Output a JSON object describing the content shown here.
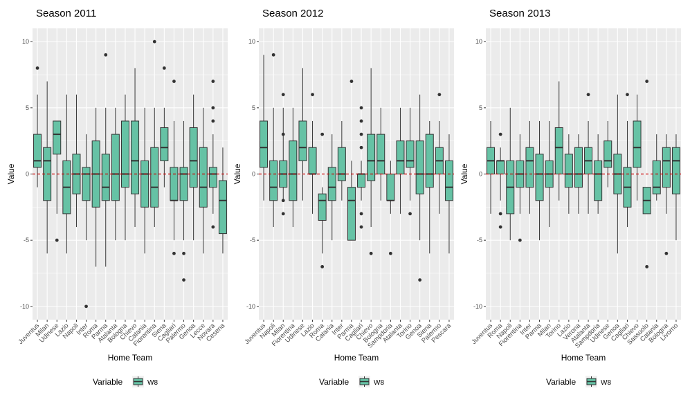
{
  "colors": {
    "box_fill": "#66c2a5",
    "reference_line": "#cc0000"
  },
  "chart_data": [
    {
      "type": "box",
      "title": "Season 2011",
      "xlabel": "Home Team",
      "ylabel": "Value",
      "ylim": [
        -11,
        11
      ],
      "yticks": [
        -10,
        -5,
        0,
        5,
        10
      ],
      "reference_line": 0,
      "legend": {
        "title": "Variable",
        "entries": [
          "W8"
        ],
        "position": "bottom"
      },
      "categories": [
        "Juventus",
        "Milan",
        "Udinese",
        "Lazio",
        "Napoli",
        "Inter",
        "Roma",
        "Parma",
        "Atalanta",
        "Bologna",
        "Chievo",
        "Catania",
        "Fiorentina",
        "Siena",
        "Cagliari",
        "Palermo",
        "Genoa",
        "Lecce",
        "Novara",
        "Cesena"
      ],
      "boxes": [
        {
          "low": -1,
          "q1": 0.5,
          "median": 1,
          "q3": 3,
          "high": 6,
          "outliers": [
            8
          ]
        },
        {
          "low": -6,
          "q1": -2,
          "median": 1,
          "q3": 2,
          "high": 7,
          "outliers": []
        },
        {
          "low": -3,
          "q1": 1.5,
          "median": 3,
          "q3": 4,
          "high": 4,
          "outliers": [
            -5
          ]
        },
        {
          "low": -6,
          "q1": -3,
          "median": -1,
          "q3": 1,
          "high": 6,
          "outliers": []
        },
        {
          "low": -4,
          "q1": -1.5,
          "median": 0,
          "q3": 1.5,
          "high": 6,
          "outliers": []
        },
        {
          "low": -5,
          "q1": -2,
          "median": 0,
          "q3": 0.5,
          "high": 3,
          "outliers": [
            -10
          ]
        },
        {
          "low": -7,
          "q1": -2.5,
          "median": 0,
          "q3": 2.5,
          "high": 5,
          "outliers": []
        },
        {
          "low": -7,
          "q1": -2,
          "median": -1,
          "q3": 1.5,
          "high": 5,
          "outliers": [
            9
          ]
        },
        {
          "low": -5,
          "q1": -2,
          "median": 0,
          "q3": 3,
          "high": 5,
          "outliers": []
        },
        {
          "low": -5,
          "q1": -1,
          "median": 0,
          "q3": 4,
          "high": 6,
          "outliers": []
        },
        {
          "low": -4,
          "q1": -1.5,
          "median": 1,
          "q3": 4,
          "high": 8,
          "outliers": []
        },
        {
          "low": -6,
          "q1": -2.5,
          "median": 0,
          "q3": 1,
          "high": 5,
          "outliers": []
        },
        {
          "low": -4,
          "q1": -2.5,
          "median": -1,
          "q3": 2,
          "high": 5,
          "outliers": [
            10
          ]
        },
        {
          "low": -1,
          "q1": 1,
          "median": 2,
          "q3": 3.5,
          "high": 5,
          "outliers": [
            8
          ]
        },
        {
          "low": -5,
          "q1": -2,
          "median": -2,
          "q3": 0.5,
          "high": 4,
          "outliers": [
            7,
            -6
          ]
        },
        {
          "low": -5,
          "q1": -2,
          "median": 0,
          "q3": 0.5,
          "high": 4,
          "outliers": [
            -6,
            -8
          ]
        },
        {
          "low": -5,
          "q1": -1,
          "median": 1,
          "q3": 3.5,
          "high": 6,
          "outliers": []
        },
        {
          "low": -6,
          "q1": -2.5,
          "median": -1,
          "q3": 2,
          "high": 5,
          "outliers": []
        },
        {
          "low": -3,
          "q1": -1,
          "median": 0,
          "q3": 0.5,
          "high": 3,
          "outliers": [
            7,
            5,
            4,
            -4
          ]
        },
        {
          "low": -6,
          "q1": -4.5,
          "median": -2,
          "q3": -0.5,
          "high": 2,
          "outliers": []
        }
      ]
    },
    {
      "type": "box",
      "title": "Season 2012",
      "xlabel": "Home Team",
      "ylabel": "Value",
      "ylim": [
        -11,
        11
      ],
      "yticks": [
        -10,
        -5,
        0,
        5,
        10
      ],
      "reference_line": 0,
      "legend": {
        "title": "Variable",
        "entries": [
          "W8"
        ],
        "position": "bottom"
      },
      "categories": [
        "Juventus",
        "Napoli",
        "Milan",
        "Fiorentina",
        "Udinese",
        "Lazio",
        "Roma",
        "Catania",
        "Inter",
        "Parma",
        "Cagliari",
        "Chievo",
        "Bologna",
        "Sampdoria",
        "Atalanta",
        "Torino",
        "Genoa",
        "Siena",
        "Palermo",
        "Pescara"
      ],
      "boxes": [
        {
          "low": -2,
          "q1": 0.5,
          "median": 2,
          "q3": 4,
          "high": 9,
          "outliers": []
        },
        {
          "low": -4,
          "q1": -2,
          "median": -1,
          "q3": 1,
          "high": 5,
          "outliers": [
            9
          ]
        },
        {
          "low": -2,
          "q1": -1,
          "median": 0,
          "q3": 1,
          "high": 5,
          "outliers": [
            6,
            3,
            -2,
            -3
          ]
        },
        {
          "low": -4,
          "q1": -2,
          "median": 0,
          "q3": 2.5,
          "high": 5,
          "outliers": []
        },
        {
          "low": -2,
          "q1": 1,
          "median": 2,
          "q3": 4,
          "high": 8,
          "outliers": []
        },
        {
          "low": -3,
          "q1": 0,
          "median": 0,
          "q3": 2,
          "high": 4,
          "outliers": [
            6
          ]
        },
        {
          "low": -6,
          "q1": -3.5,
          "median": -2,
          "q3": -1.5,
          "high": -1,
          "outliers": [
            3,
            -7
          ]
        },
        {
          "low": -5,
          "q1": -2,
          "median": -1,
          "q3": 0.5,
          "high": 3,
          "outliers": []
        },
        {
          "low": -2,
          "q1": -0.5,
          "median": 0,
          "q3": 2,
          "high": 4,
          "outliers": []
        },
        {
          "low": -5,
          "q1": -5,
          "median": -2,
          "q3": -1,
          "high": 1,
          "outliers": [
            7
          ]
        },
        {
          "low": -2,
          "q1": -1,
          "median": 0,
          "q3": 0,
          "high": 1,
          "outliers": [
            5,
            4,
            3,
            2,
            -3,
            -4
          ]
        },
        {
          "low": -4,
          "q1": -0.5,
          "median": 1,
          "q3": 3,
          "high": 8,
          "outliers": [
            -6
          ]
        },
        {
          "low": -2,
          "q1": 0,
          "median": 1,
          "q3": 3,
          "high": 5,
          "outliers": []
        },
        {
          "low": -3,
          "q1": -2,
          "median": -2,
          "q3": 0,
          "high": 1,
          "outliers": [
            -6
          ]
        },
        {
          "low": -3,
          "q1": 0,
          "median": 1,
          "q3": 2.5,
          "high": 5,
          "outliers": []
        },
        {
          "low": -2,
          "q1": 0.5,
          "median": 1,
          "q3": 2.5,
          "high": 5,
          "outliers": [
            -3
          ]
        },
        {
          "low": -5,
          "q1": -1.5,
          "median": 0,
          "q3": 2.5,
          "high": 6,
          "outliers": [
            -8
          ]
        },
        {
          "low": -6,
          "q1": -1,
          "median": 0,
          "q3": 3,
          "high": 4,
          "outliers": []
        },
        {
          "low": -3,
          "q1": 0,
          "median": 1,
          "q3": 2,
          "high": 4,
          "outliers": [
            6
          ]
        },
        {
          "low": -6,
          "q1": -2,
          "median": -1,
          "q3": 1,
          "high": 3,
          "outliers": []
        }
      ]
    },
    {
      "type": "box",
      "title": "Season 2013",
      "xlabel": "Home Team",
      "ylabel": "Value",
      "ylim": [
        -11,
        11
      ],
      "yticks": [
        -10,
        -5,
        0,
        5,
        10
      ],
      "reference_line": 0,
      "legend": {
        "title": "Variable",
        "entries": [
          "W8"
        ],
        "position": "bottom"
      },
      "categories": [
        "Juventus",
        "Roma",
        "Napoli",
        "Fiorentina",
        "Inter",
        "Parma",
        "Milan",
        "Torino",
        "Lazio",
        "Verona",
        "Atalanta",
        "Sampdoria",
        "Udinese",
        "Genoa",
        "Cagliari",
        "Chievo",
        "Sassuolo",
        "Catania",
        "Bologna",
        "Livorno"
      ],
      "boxes": [
        {
          "low": -3,
          "q1": 0,
          "median": 1,
          "q3": 2,
          "high": 4,
          "outliers": []
        },
        {
          "low": -2,
          "q1": 0,
          "median": 1,
          "q3": 1,
          "high": 2,
          "outliers": [
            3,
            -3,
            -4
          ]
        },
        {
          "low": -5,
          "q1": -3,
          "median": -1,
          "q3": 1,
          "high": 5,
          "outliers": []
        },
        {
          "low": -3,
          "q1": -1,
          "median": 0,
          "q3": 1,
          "high": 3,
          "outliers": [
            -5
          ]
        },
        {
          "low": -3,
          "q1": -1,
          "median": 1,
          "q3": 2,
          "high": 4,
          "outliers": []
        },
        {
          "low": -5,
          "q1": -2,
          "median": 0,
          "q3": 1.5,
          "high": 4,
          "outliers": []
        },
        {
          "low": -4,
          "q1": -1,
          "median": 0,
          "q3": 1,
          "high": 4,
          "outliers": []
        },
        {
          "low": -2,
          "q1": 0,
          "median": 2,
          "q3": 3.5,
          "high": 7,
          "outliers": []
        },
        {
          "low": -3,
          "q1": -1,
          "median": 0,
          "q3": 1.5,
          "high": 3,
          "outliers": []
        },
        {
          "low": -3,
          "q1": -1,
          "median": 0,
          "q3": 2,
          "high": 3,
          "outliers": []
        },
        {
          "low": -3,
          "q1": 0,
          "median": 1,
          "q3": 2,
          "high": 4,
          "outliers": [
            6
          ]
        },
        {
          "low": -3,
          "q1": -2,
          "median": 0,
          "q3": 1,
          "high": 3,
          "outliers": []
        },
        {
          "low": -1,
          "q1": 0.5,
          "median": 1,
          "q3": 2.5,
          "high": 4,
          "outliers": []
        },
        {
          "low": -6,
          "q1": -1.5,
          "median": 0,
          "q3": 1.5,
          "high": 6,
          "outliers": []
        },
        {
          "low": -4,
          "q1": -2.5,
          "median": -1,
          "q3": 0.5,
          "high": 4,
          "outliers": [
            6
          ]
        },
        {
          "low": -2,
          "q1": 0.5,
          "median": 2,
          "q3": 4,
          "high": 6,
          "outliers": []
        },
        {
          "low": -3,
          "q1": -3,
          "median": -2,
          "q3": -1,
          "high": -1,
          "outliers": [
            7,
            -7
          ]
        },
        {
          "low": -2,
          "q1": -1.5,
          "median": -1,
          "q3": 1,
          "high": 3,
          "outliers": []
        },
        {
          "low": -3,
          "q1": -1,
          "median": 1,
          "q3": 2,
          "high": 3,
          "outliers": [
            -6
          ]
        },
        {
          "low": -5,
          "q1": -1.5,
          "median": 1,
          "q3": 2,
          "high": 3,
          "outliers": []
        }
      ]
    }
  ]
}
